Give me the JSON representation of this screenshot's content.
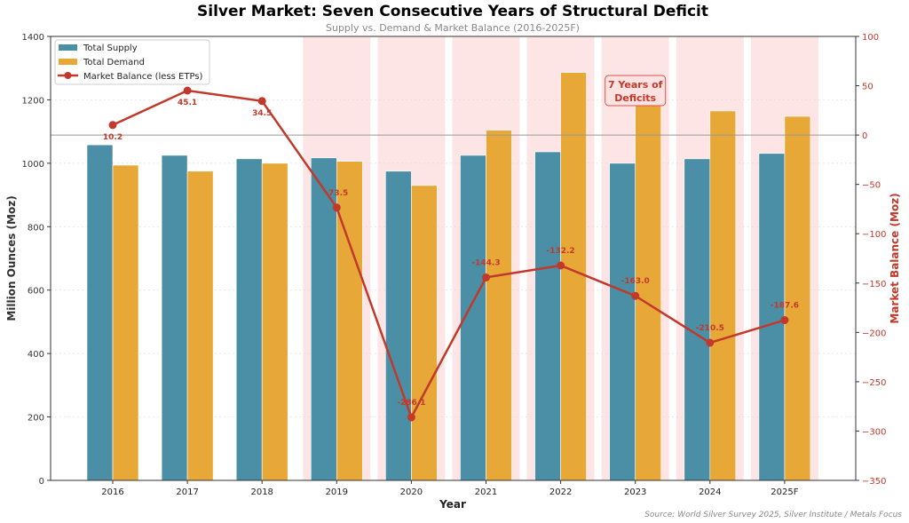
{
  "chart_data": {
    "type": "bar",
    "title": "Silver Market: Seven Consecutive Years of Structural Deficit",
    "subtitle": "Supply vs. Demand & Market Balance (2016-2025F)",
    "xlabel": "Year",
    "ylabel": "Million Ounces (Moz)",
    "y2label": "Market Balance (Moz)",
    "categories": [
      "2016",
      "2017",
      "2018",
      "2019",
      "2020",
      "2021",
      "2022",
      "2023",
      "2024",
      "2025F"
    ],
    "ylim": [
      0,
      1400
    ],
    "y2lim": [
      -350,
      100
    ],
    "yticks": [
      0,
      200,
      400,
      600,
      800,
      1000,
      1200,
      1400
    ],
    "y2ticks": [
      100,
      50,
      0,
      -50,
      -100,
      -150,
      -200,
      -250,
      -300,
      -350
    ],
    "grid": true,
    "legend_position": "top-left",
    "series": [
      {
        "name": "Total Supply",
        "type": "bar",
        "axis": "left",
        "color": "#4a8fa6",
        "values": [
          1058,
          1025,
          1014,
          1017,
          975,
          1025,
          1036,
          1000,
          1014,
          1031
        ]
      },
      {
        "name": "Total Demand",
        "type": "bar",
        "axis": "left",
        "color": "#e8a838",
        "values": [
          994,
          975,
          1000,
          1006,
          930,
          1104,
          1286,
          1195,
          1165,
          1148
        ]
      },
      {
        "name": "Market Balance (less ETPs)",
        "type": "line",
        "axis": "right",
        "color": "#c0392b",
        "values": [
          10.2,
          45.1,
          34.5,
          -73.5,
          -286.1,
          -144.3,
          -132.2,
          -163.0,
          -210.5,
          -187.6
        ],
        "labels": [
          "10.2",
          "45.1",
          "34.5",
          "-73.5",
          "-286.1",
          "-144.3",
          "-132.2",
          "-163.0",
          "-210.5",
          "-187.6"
        ]
      }
    ],
    "deficit_years": [
      "2019",
      "2020",
      "2021",
      "2022",
      "2023",
      "2024",
      "2025F"
    ],
    "deficit_shade_color": "#fde2e2",
    "annotation": "7 Years of\nDeficits",
    "source": "Source: World Silver Survey 2025, Silver Institute / Metals Focus"
  }
}
